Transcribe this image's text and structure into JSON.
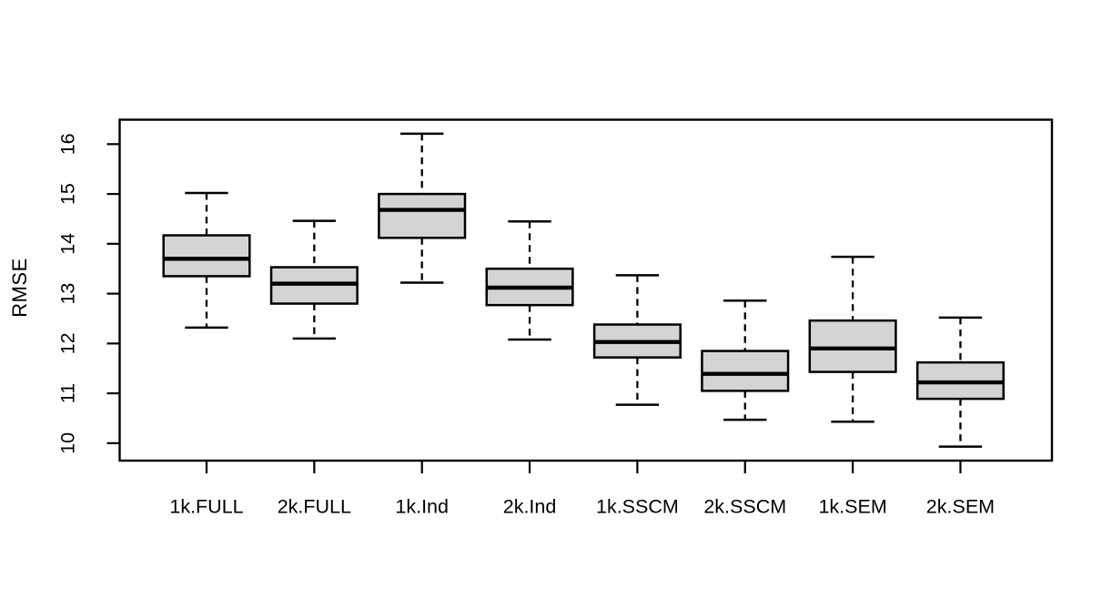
{
  "figure": {
    "background_color": "#ffffff",
    "box_fill_color": "#d4d4d4",
    "line_color": "#000000"
  },
  "chart_data": {
    "type": "boxplot",
    "title": "",
    "xlabel": "",
    "ylabel": "RMSE",
    "categories": [
      "1k.FULL",
      "2k.FULL",
      "1k.Ind",
      "2k.Ind",
      "1k.SSCM",
      "2k.SSCM",
      "1k.SEM",
      "2k.SEM"
    ],
    "y_ticks": [
      10,
      11,
      12,
      13,
      14,
      15,
      16
    ],
    "ylim": [
      9.65,
      16.49
    ],
    "grid": false,
    "legend": "none",
    "whisker_style": "dashed",
    "series": [
      {
        "name": "1k.FULL",
        "whisker_low": 12.32,
        "q1": 13.35,
        "median": 13.7,
        "q3": 14.17,
        "whisker_high": 15.02
      },
      {
        "name": "2k.FULL",
        "whisker_low": 12.1,
        "q1": 12.8,
        "median": 13.2,
        "q3": 13.53,
        "whisker_high": 14.46
      },
      {
        "name": "1k.Ind",
        "whisker_low": 13.22,
        "q1": 14.12,
        "median": 14.68,
        "q3": 15.0,
        "whisker_high": 16.21
      },
      {
        "name": "2k.Ind",
        "whisker_low": 12.08,
        "q1": 12.77,
        "median": 13.12,
        "q3": 13.5,
        "whisker_high": 14.45
      },
      {
        "name": "1k.SSCM",
        "whisker_low": 10.77,
        "q1": 11.72,
        "median": 12.03,
        "q3": 12.38,
        "whisker_high": 13.37
      },
      {
        "name": "2k.SSCM",
        "whisker_low": 10.47,
        "q1": 11.05,
        "median": 11.39,
        "q3": 11.85,
        "whisker_high": 12.86
      },
      {
        "name": "1k.SEM",
        "whisker_low": 10.43,
        "q1": 11.43,
        "median": 11.9,
        "q3": 12.46,
        "whisker_high": 13.74
      },
      {
        "name": "2k.SEM",
        "whisker_low": 9.93,
        "q1": 10.89,
        "median": 11.22,
        "q3": 11.62,
        "whisker_high": 12.52
      }
    ]
  }
}
